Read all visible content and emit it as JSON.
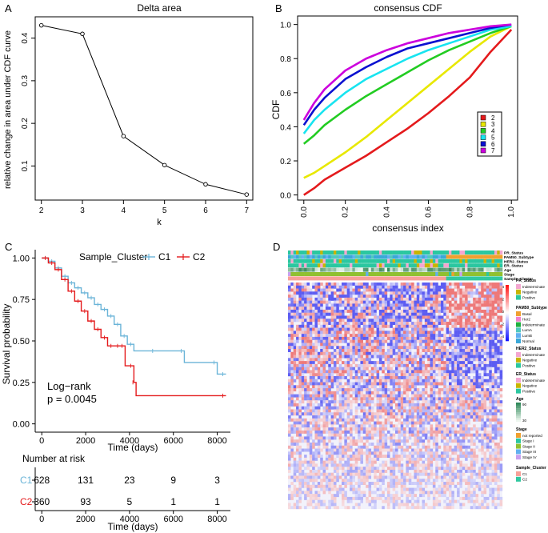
{
  "panels": {
    "a": "A",
    "b": "B",
    "c": "C",
    "d": "D"
  },
  "chart_data": [
    {
      "id": "delta_area",
      "type": "line",
      "title": "Delta area",
      "xlabel": "k",
      "ylabel": "relative change in area under CDF curve",
      "x": [
        2,
        3,
        4,
        5,
        6,
        7
      ],
      "values": [
        0.43,
        0.41,
        0.17,
        0.102,
        0.057,
        0.033
      ],
      "xlim": [
        1.85,
        7.15
      ],
      "ylim": [
        0.02,
        0.45
      ],
      "xticks": [
        "2",
        "3",
        "4",
        "5",
        "6",
        "7"
      ],
      "yticks": [
        "0.1",
        "0.2",
        "0.3",
        "0.4"
      ]
    },
    {
      "id": "consensus_cdf",
      "type": "line",
      "title": "consensus CDF",
      "xlabel": "consensus index",
      "ylabel": "CDF",
      "xlim": [
        -0.03,
        1.03
      ],
      "ylim": [
        -0.03,
        1.05
      ],
      "xticks": [
        "0.0",
        "0.2",
        "0.4",
        "0.6",
        "0.8",
        "1.0"
      ],
      "yticks": [
        "0.0",
        "0.2",
        "0.4",
        "0.6",
        "0.8",
        "1.0"
      ],
      "legend": "right",
      "x": [
        0,
        0.05,
        0.1,
        0.2,
        0.3,
        0.4,
        0.5,
        0.6,
        0.7,
        0.8,
        0.9,
        1.0
      ],
      "series": [
        {
          "name": "2",
          "color": "#e41a1c",
          "values": [
            0.0,
            0.04,
            0.09,
            0.16,
            0.23,
            0.31,
            0.39,
            0.48,
            0.58,
            0.69,
            0.84,
            0.97
          ]
        },
        {
          "name": "3",
          "color": "#e8e800",
          "values": [
            0.1,
            0.13,
            0.17,
            0.25,
            0.34,
            0.44,
            0.54,
            0.64,
            0.74,
            0.84,
            0.93,
            0.99
          ]
        },
        {
          "name": "4",
          "color": "#22cc22",
          "values": [
            0.3,
            0.35,
            0.41,
            0.5,
            0.58,
            0.65,
            0.72,
            0.79,
            0.85,
            0.9,
            0.95,
            0.99
          ]
        },
        {
          "name": "5",
          "color": "#17e4f0",
          "values": [
            0.36,
            0.44,
            0.5,
            0.6,
            0.68,
            0.74,
            0.8,
            0.85,
            0.89,
            0.93,
            0.97,
            0.99
          ]
        },
        {
          "name": "6",
          "color": "#0a10d0",
          "values": [
            0.41,
            0.5,
            0.57,
            0.68,
            0.75,
            0.81,
            0.86,
            0.89,
            0.92,
            0.95,
            0.98,
            1.0
          ]
        },
        {
          "name": "7",
          "color": "#cc00dd",
          "values": [
            0.44,
            0.54,
            0.62,
            0.73,
            0.8,
            0.85,
            0.89,
            0.92,
            0.95,
            0.97,
            0.99,
            1.0
          ]
        }
      ]
    },
    {
      "id": "survival",
      "type": "line",
      "title": "",
      "xlabel": "Time (days)",
      "ylabel": "Survival probability",
      "xlim": [
        -300,
        8600
      ],
      "ylim": [
        -0.05,
        1.05
      ],
      "xticks": [
        "0",
        "2000",
        "4000",
        "6000",
        "8000"
      ],
      "yticks": [
        "0.00",
        "0.25",
        "0.50",
        "0.75",
        "1.00"
      ],
      "legend_title": "Sample_Cluster",
      "series": [
        {
          "name": "C1",
          "color": "#6ab4d8",
          "x": [
            0,
            300,
            600,
            900,
            1200,
            1500,
            1800,
            2100,
            2400,
            2700,
            3000,
            3300,
            3600,
            3900,
            4200,
            5200,
            6500,
            8000,
            8400
          ],
          "values": [
            1.0,
            0.98,
            0.94,
            0.89,
            0.85,
            0.82,
            0.79,
            0.76,
            0.72,
            0.69,
            0.65,
            0.6,
            0.53,
            0.48,
            0.44,
            0.44,
            0.37,
            0.3,
            0.3
          ]
        },
        {
          "name": "C2",
          "color": "#e41a1c",
          "x": [
            0,
            300,
            600,
            900,
            1200,
            1500,
            1800,
            2100,
            2400,
            2700,
            3000,
            3300,
            3600,
            3800,
            4200,
            4300,
            8400
          ],
          "values": [
            1.0,
            0.97,
            0.93,
            0.87,
            0.8,
            0.74,
            0.68,
            0.62,
            0.57,
            0.52,
            0.47,
            0.47,
            0.47,
            0.35,
            0.25,
            0.17,
            0.17
          ]
        }
      ],
      "annotation": [
        "Log−rank",
        "p = 0.0045"
      ]
    },
    {
      "id": "risk_table",
      "type": "table",
      "title": "Number at risk",
      "xlabel": "Time (days)",
      "xticks": [
        "0",
        "2000",
        "4000",
        "6000",
        "8000"
      ],
      "times": [
        0,
        2000,
        4000,
        6000,
        8000
      ],
      "rows": [
        {
          "name": "C1",
          "color": "#6ab4d8",
          "values": [
            "628",
            "131",
            "23",
            "9",
            "3"
          ]
        },
        {
          "name": "C2",
          "color": "#e41a1c",
          "values": [
            "360",
            "93",
            "5",
            "1",
            "1"
          ]
        }
      ]
    },
    {
      "id": "heatmap",
      "type": "heatmap",
      "annotation_tracks": [
        "PR_Status",
        "PAM50_Subtype",
        "HER2_Status",
        "ER_Status",
        "Age",
        "Stage",
        "Sample_Cluster"
      ],
      "colorbar": {
        "ticks": [
          "4",
          "2",
          "0",
          "-2",
          "-4"
        ]
      },
      "legends": [
        {
          "title": "PR_Status",
          "items": [
            {
              "label": "Indeterminate",
              "color": "#f4a6d0"
            },
            {
              "label": "Negative",
              "color": "#c8b400"
            },
            {
              "label": "Positive",
              "color": "#2bc7a0"
            }
          ]
        },
        {
          "title": "PAM50_Subtype",
          "items": [
            {
              "label": "Basal",
              "color": "#f0a030"
            },
            {
              "label": "Her2",
              "color": "#f080d0"
            },
            {
              "label": "Indeterminate",
              "color": "#20b040"
            },
            {
              "label": "LumA",
              "color": "#50c8c0"
            },
            {
              "label": "LumB",
              "color": "#60b0f0"
            },
            {
              "label": "Normal",
              "color": "#3aa8d8"
            }
          ]
        },
        {
          "title": "HER2_Status",
          "items": [
            {
              "label": "Indeterminate",
              "color": "#f4a6d0"
            },
            {
              "label": "Negative",
              "color": "#c8b400"
            },
            {
              "label": "Positive",
              "color": "#2bc7a0"
            }
          ]
        },
        {
          "title": "ER_Status",
          "items": [
            {
              "label": "Indeterminate",
              "color": "#f4a6d0"
            },
            {
              "label": "Negative",
              "color": "#c8b400"
            },
            {
              "label": "Positive",
              "color": "#2bc7a0"
            }
          ]
        },
        {
          "title": "Age",
          "items": [
            {
              "label": "90",
              "color": "#2f8a5a"
            },
            {
              "label": "30",
              "color": "#eef7f0"
            }
          ]
        },
        {
          "title": "Stage",
          "items": [
            {
              "label": "not reported",
              "color": "#f0a030"
            },
            {
              "label": "Stage I",
              "color": "#2bc7a0"
            },
            {
              "label": "Stage II",
              "color": "#90c030"
            },
            {
              "label": "Stage III",
              "color": "#60b0f0"
            },
            {
              "label": "Stage IV",
              "color": "#c8a0f0"
            }
          ]
        },
        {
          "title": "Sample_Cluster",
          "items": [
            {
              "label": "C1",
              "color": "#f8a098"
            },
            {
              "label": "C2",
              "color": "#30c8a0"
            }
          ]
        }
      ]
    }
  ]
}
